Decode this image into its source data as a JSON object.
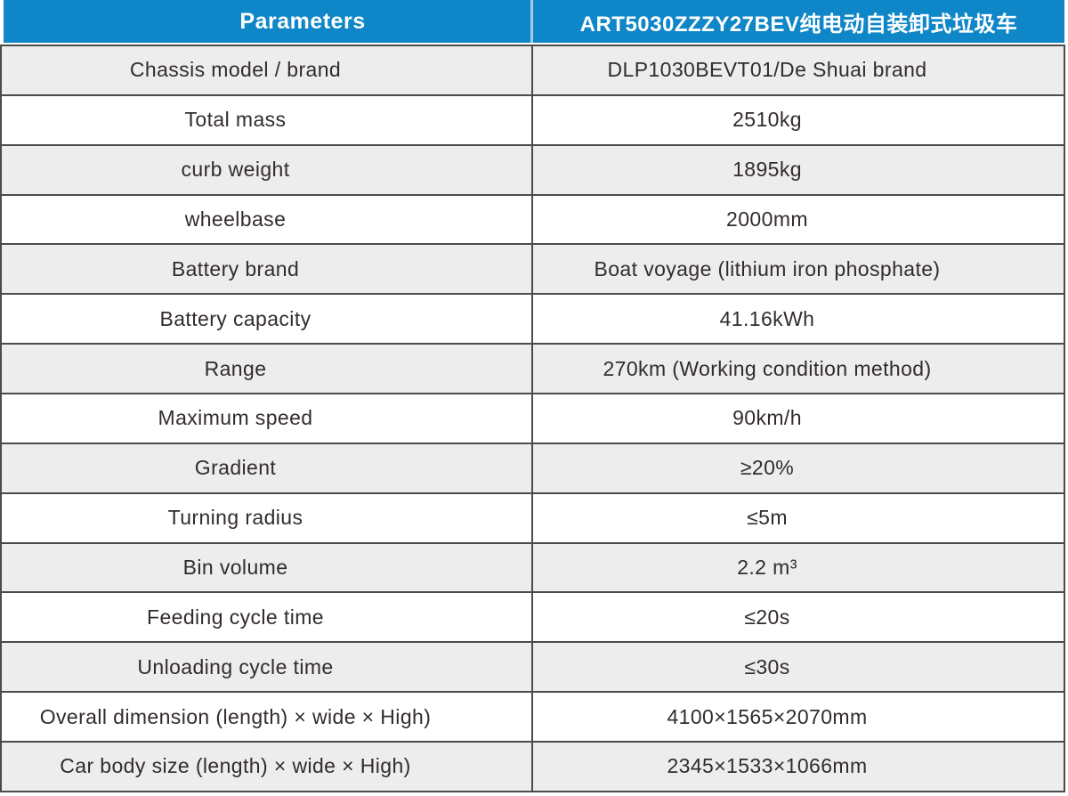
{
  "colors": {
    "header_bg": "#0E86C7",
    "header_text": "#FFFFFF",
    "header_divider": "#A9C9E2",
    "row_alt_bg": "#EDEDED",
    "row_bg": "#FFFFFF",
    "border": "#4D4A4A",
    "text": "#322C2B"
  },
  "chart_data": {
    "type": "table",
    "title": "ART5030ZZZY27BEV electric self-loading garbage truck specifications",
    "columns": [
      "Parameters",
      "ART5030ZZZY27BEV纯电动自装卸式垃圾车"
    ],
    "rows": [
      [
        "Chassis model / brand",
        "DLP1030BEVT01/De Shuai brand"
      ],
      [
        "Total mass",
        "2510kg"
      ],
      [
        "curb weight",
        "1895kg"
      ],
      [
        "wheelbase",
        "2000mm"
      ],
      [
        "Battery brand",
        "Boat voyage (lithium iron phosphate)"
      ],
      [
        "Battery capacity",
        "41.16kWh"
      ],
      [
        "Range",
        "270km (Working condition method)"
      ],
      [
        "Maximum speed",
        "90km/h"
      ],
      [
        "Gradient",
        "≥20%"
      ],
      [
        "Turning radius",
        "≤5m"
      ],
      [
        "Bin volume",
        "2.2 m³"
      ],
      [
        "Feeding cycle time",
        "≤20s"
      ],
      [
        "Unloading cycle time",
        "≤30s"
      ],
      [
        "Overall dimension (length) × wide × High)",
        "4100×1565×2070mm"
      ],
      [
        "Car body size (length) × wide × High)",
        "2345×1533×1066mm"
      ]
    ],
    "layout_hints": {
      "zebra_striping": "odd rows shaded",
      "header_style": "blue band, white bold text",
      "grid": "dark 2px horizontal and vertical rules"
    }
  }
}
